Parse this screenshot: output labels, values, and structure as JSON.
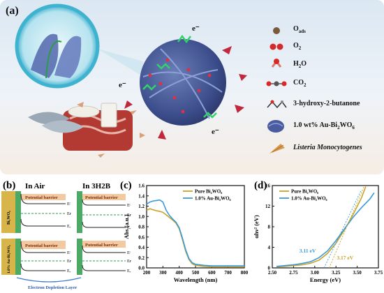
{
  "panel_a": {
    "label": "(a)",
    "electron_label": "e⁻",
    "legend": [
      {
        "id": "oads",
        "text": "O",
        "sub": "ads"
      },
      {
        "id": "o2",
        "text": "O",
        "sub": "2"
      },
      {
        "id": "h2o",
        "text": "H",
        "sub": "2",
        "tail": "O"
      },
      {
        "id": "co2",
        "text": "CO",
        "sub": "2"
      },
      {
        "id": "hb",
        "text": "3-hydroxy-2-butanone"
      },
      {
        "id": "au",
        "text": "1.0 wt% Au-Bi",
        "sub": "2",
        "tail": "WO",
        "sub2": "6"
      },
      {
        "id": "lm",
        "text": "Listeria Monocytogenes"
      }
    ]
  },
  "panel_b": {
    "label": "(b)",
    "col_air": "In Air",
    "col_3h2b": "In 3H2B",
    "row1": "Bi₂WO₆",
    "row2": "1.0% Au-Bi₂WO₆",
    "barrier": "Potential barrier",
    "levels": [
      "Eᶜ",
      "Eғ",
      "Eᵥ"
    ],
    "depletion": "Electron Depletion Layer"
  },
  "panel_c": {
    "label": "(c)",
    "ylabel": "Abs (a.u.)",
    "xlabel": "Wavelength (nm)",
    "legend": [
      "Pure Bi₂WO₆",
      "1.0% Au-Bi₂WO₆"
    ]
  },
  "panel_d": {
    "label": "(d)",
    "ylabel": "αhν² (eV)",
    "xlabel": "Energy (eV)",
    "legend": [
      "Pure Bi₂WO₆",
      "1.0% Au-Bi₂WO₆"
    ],
    "ann_blue": "3.11 eV",
    "ann_orange": "3.17 eV"
  },
  "colors": {
    "pure": "#c9a227",
    "au": "#3a9ad9",
    "green": "#2e9b4a",
    "barrier": "#f3c9a0"
  },
  "chart_data": [
    {
      "type": "line",
      "title": "",
      "xlabel": "Wavelength (nm)",
      "ylabel": "Abs (a.u.)",
      "xlim": [
        200,
        800
      ],
      "ylim": [
        0,
        1.6
      ],
      "xticks": [
        200,
        300,
        400,
        500,
        600,
        700,
        800
      ],
      "yticks": [
        0.0,
        0.2,
        0.4,
        0.6,
        0.8,
        1.0,
        1.2,
        1.4,
        1.6
      ],
      "series": [
        {
          "name": "Pure Bi₂WO₆",
          "color": "#c9a227",
          "x": [
            200,
            220,
            240,
            260,
            280,
            300,
            320,
            340,
            360,
            380,
            400,
            420,
            440,
            460,
            480,
            500,
            550,
            600,
            700,
            800
          ],
          "y": [
            1.12,
            1.15,
            1.13,
            1.11,
            1.1,
            1.08,
            1.03,
            0.98,
            0.93,
            0.87,
            0.76,
            0.55,
            0.32,
            0.16,
            0.08,
            0.05,
            0.03,
            0.02,
            0.02,
            0.02
          ]
        },
        {
          "name": "1.0% Au-Bi₂WO₆",
          "color": "#3a9ad9",
          "x": [
            200,
            220,
            240,
            260,
            280,
            300,
            320,
            340,
            360,
            380,
            400,
            420,
            440,
            460,
            480,
            500,
            550,
            600,
            700,
            800
          ],
          "y": [
            1.24,
            1.28,
            1.3,
            1.31,
            1.32,
            1.28,
            1.12,
            1.02,
            0.95,
            0.89,
            0.78,
            0.58,
            0.35,
            0.18,
            0.1,
            0.07,
            0.05,
            0.04,
            0.04,
            0.04
          ]
        }
      ]
    },
    {
      "type": "line",
      "title": "",
      "xlabel": "Energy (eV)",
      "ylabel": "αhν² (eV)",
      "xlim": [
        2.5,
        3.75
      ],
      "ylim": [
        0,
        16
      ],
      "xticks": [
        2.5,
        2.75,
        3.0,
        3.25,
        3.5,
        3.75
      ],
      "yticks": [
        0,
        4,
        8,
        12,
        16
      ],
      "annotations": [
        {
          "text": "3.11 eV",
          "x": 3.11
        },
        {
          "text": "3.17 eV",
          "x": 3.17
        }
      ],
      "series": [
        {
          "name": "Pure Bi₂WO₆",
          "color": "#c9a227",
          "x": [
            2.55,
            2.65,
            2.75,
            2.85,
            2.95,
            3.05,
            3.15,
            3.25,
            3.35,
            3.45,
            3.55,
            3.6
          ],
          "y": [
            0.2,
            0.3,
            0.45,
            0.6,
            0.9,
            1.5,
            2.8,
            4.8,
            7.4,
            10.3,
            13.6,
            15.8
          ]
        },
        {
          "name": "1.0% Au-Bi₂WO₆",
          "color": "#3a9ad9",
          "x": [
            2.55,
            2.65,
            2.75,
            2.85,
            2.95,
            3.05,
            3.15,
            3.25,
            3.35,
            3.45,
            3.55,
            3.65,
            3.7
          ],
          "y": [
            0.3,
            0.45,
            0.6,
            0.85,
            1.2,
            2.0,
            3.3,
            5.3,
            7.6,
            9.8,
            11.7,
            13.4,
            14.6
          ]
        }
      ]
    }
  ]
}
